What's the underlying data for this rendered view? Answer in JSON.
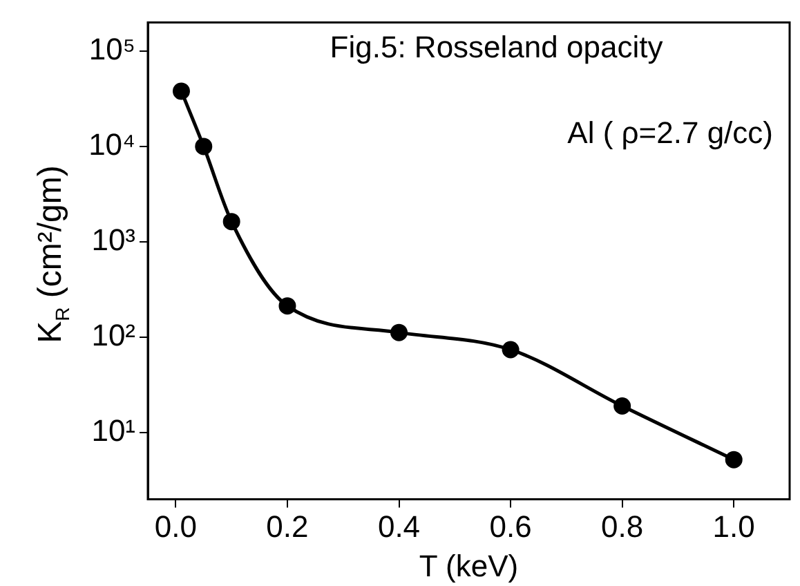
{
  "chart_data": {
    "type": "line",
    "title": "Fig.5: Rosseland opacity",
    "xlabel": "T (keV)",
    "ylabel": "K$_{R}$ (cm²/gm)",
    "annotations": [
      "Al ( ρ=2.7 g/cc)"
    ],
    "x": [
      0.01,
      0.05,
      0.1,
      0.2,
      0.4,
      0.6,
      0.8,
      1.0
    ],
    "series": [
      {
        "color": "#000000",
        "values": [
          38000,
          10000,
          1630,
          213,
          112,
          74,
          19,
          5.2
        ]
      }
    ],
    "log": "y",
    "xlim": [
      -0.05,
      1.1
    ],
    "xticks": [
      {
        "value": 0,
        "label": "0.0"
      },
      0.2,
      0.4,
      0.6,
      0.8,
      {
        "value": 1,
        "label": "1.0"
      }
    ],
    "ylim": [
      2,
      200000
    ],
    "yticks": [
      {
        "value": 10,
        "label": "10¹"
      },
      {
        "value": 100,
        "label": "10²"
      },
      {
        "value": 1000,
        "label": "10³"
      },
      {
        "value": 10000,
        "label": "10⁴"
      },
      {
        "value": 100000,
        "label": "10⁵"
      }
    ],
    "grid": false,
    "legend": false,
    "marker": "circle",
    "line_style": "solid"
  }
}
